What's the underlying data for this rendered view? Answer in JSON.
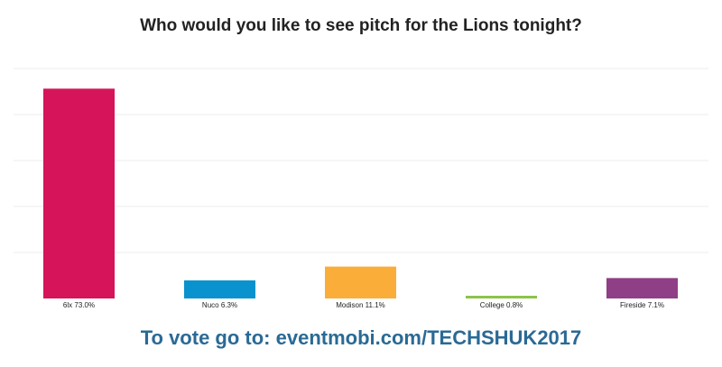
{
  "chart_data": {
    "type": "bar",
    "title": "Who would you like to see pitch for the Lions tonight?",
    "categories": [
      "6lx",
      "Nuco",
      "Modison",
      "College",
      "Fireside"
    ],
    "values": [
      73.0,
      6.3,
      11.1,
      0.8,
      7.1
    ],
    "labels": [
      "6lx 73.0%",
      "Nuco 6.3%",
      "Modison 11.1%",
      "College 0.8%",
      "Fireside 7.1%"
    ],
    "colors": [
      "#d6145a",
      "#0a92cf",
      "#fbad3a",
      "#8bc34a",
      "#8e3f86"
    ],
    "ylim": [
      0,
      80
    ],
    "grid": true,
    "xlabel": "",
    "ylabel": ""
  },
  "footer": "To vote go to: eventmobi.com/TECHSHUK2017"
}
